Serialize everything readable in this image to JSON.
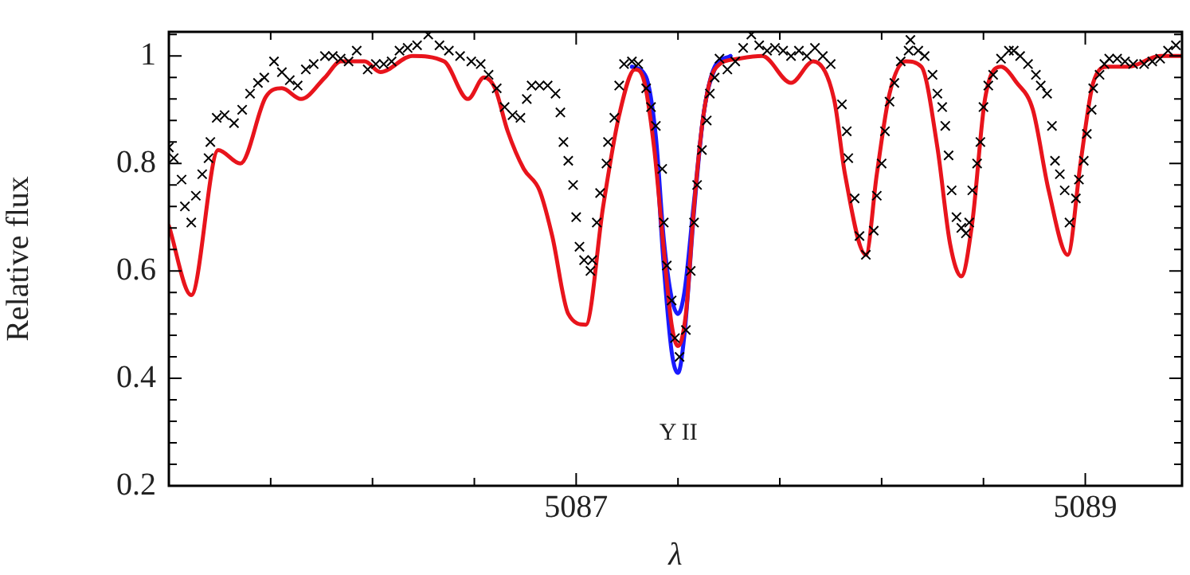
{
  "chart_data": {
    "type": "line",
    "xlabel": "λ",
    "ylabel": "Relative flux",
    "xlim": [
      5085.4,
      5089.38
    ],
    "ylim": [
      0.2,
      1.045
    ],
    "xticks": [
      {
        "value": 5085.8,
        "label": null
      },
      {
        "value": 5086.2,
        "label": null
      },
      {
        "value": 5086.6,
        "label": null
      },
      5087,
      {
        "value": 5087.4,
        "label": null
      },
      {
        "value": 5087.8,
        "label": null
      },
      {
        "value": 5088.2,
        "label": null
      },
      {
        "value": 5088.6,
        "label": null
      },
      5089
    ],
    "yticks": [
      0.2,
      {
        "value": 0.24,
        "label": null
      },
      {
        "value": 0.28,
        "label": null
      },
      {
        "value": 0.32,
        "label": null
      },
      {
        "value": 0.36,
        "label": null
      },
      0.4,
      {
        "value": 0.44,
        "label": null
      },
      {
        "value": 0.48,
        "label": null
      },
      {
        "value": 0.52,
        "label": null
      },
      {
        "value": 0.56,
        "label": null
      },
      0.6,
      {
        "value": 0.64,
        "label": null
      },
      {
        "value": 0.68,
        "label": null
      },
      {
        "value": 0.72,
        "label": null
      },
      {
        "value": 0.76,
        "label": null
      },
      0.8,
      {
        "value": 0.84,
        "label": null
      },
      {
        "value": 0.88,
        "label": null
      },
      {
        "value": 0.92,
        "label": null
      },
      {
        "value": 0.96,
        "label": null
      },
      1,
      {
        "value": 1.04,
        "label": null
      }
    ],
    "grid": false,
    "legend": false,
    "line_style": "solid",
    "annotations": [
      "Y II"
    ],
    "series": [
      {
        "color": "#1a1aff",
        "x": [
          5087.219,
          5087.275,
          5087.313,
          5087.344,
          5087.375,
          5087.4,
          5087.425,
          5087.463,
          5087.5,
          5087.544,
          5087.606
        ],
        "values": [
          0.98,
          0.96,
          0.85,
          0.66,
          0.55,
          0.52,
          0.56,
          0.73,
          0.89,
          0.98,
          1.0
        ]
      },
      {
        "color": "#1a1aff",
        "x": [
          5087.219,
          5087.275,
          5087.313,
          5087.344,
          5087.375,
          5087.4,
          5087.425,
          5087.463,
          5087.5,
          5087.544,
          5087.606
        ],
        "values": [
          0.98,
          0.96,
          0.82,
          0.61,
          0.45,
          0.41,
          0.48,
          0.71,
          0.89,
          0.975,
          1.0
        ]
      },
      {
        "color": "#e8141c",
        "x": [
          5085.4,
          5085.488,
          5085.594,
          5085.681,
          5085.781,
          5085.844,
          5085.919,
          5086.013,
          5086.075,
          5086.169,
          5086.231,
          5086.356,
          5086.481,
          5086.575,
          5086.638,
          5086.681,
          5086.731,
          5086.794,
          5086.856,
          5086.906,
          5086.969,
          5087.038,
          5087.106,
          5087.169,
          5087.231,
          5087.263,
          5087.306,
          5087.344,
          5087.375,
          5087.4,
          5087.431,
          5087.463,
          5087.5,
          5087.544,
          5087.638,
          5087.731,
          5087.844,
          5087.931,
          5088.013,
          5088.056,
          5088.138,
          5088.181,
          5088.231,
          5088.294,
          5088.356,
          5088.419,
          5088.469,
          5088.513,
          5088.556,
          5088.606,
          5088.669,
          5088.731,
          5088.794,
          5088.856,
          5088.931,
          5088.981,
          5089.031,
          5089.088,
          5089.169,
          5089.294,
          5089.38
        ],
        "values": [
          0.684,
          0.555,
          0.825,
          0.8,
          0.924,
          0.94,
          0.92,
          0.96,
          0.99,
          0.99,
          0.97,
          1.0,
          0.99,
          0.92,
          0.96,
          0.94,
          0.86,
          0.79,
          0.75,
          0.665,
          0.52,
          0.5,
          0.72,
          0.89,
          0.975,
          0.96,
          0.83,
          0.64,
          0.5,
          0.46,
          0.52,
          0.72,
          0.89,
          0.975,
          0.995,
          1.0,
          0.95,
          0.99,
          0.92,
          0.78,
          0.63,
          0.78,
          0.93,
          0.99,
          0.98,
          0.83,
          0.65,
          0.59,
          0.69,
          0.92,
          0.98,
          0.95,
          0.9,
          0.75,
          0.63,
          0.8,
          0.95,
          0.98,
          0.98,
          1.0,
          1.0
        ]
      },
      {
        "type": "scatter",
        "color": "#000000",
        "marker": "cross",
        "x": [
          5085.4,
          5085.419,
          5085.45,
          5085.463,
          5085.488,
          5085.506,
          5085.531,
          5085.556,
          5085.563,
          5085.588,
          5085.619,
          5085.656,
          5085.688,
          5085.719,
          5085.75,
          5085.775,
          5085.813,
          5085.844,
          5085.875,
          5085.906,
          5085.938,
          5085.969,
          5086.013,
          5086.044,
          5086.075,
          5086.106,
          5086.138,
          5086.181,
          5086.213,
          5086.244,
          5086.275,
          5086.306,
          5086.338,
          5086.375,
          5086.419,
          5086.463,
          5086.5,
          5086.544,
          5086.588,
          5086.625,
          5086.656,
          5086.688,
          5086.719,
          5086.75,
          5086.781,
          5086.806,
          5086.825,
          5086.856,
          5086.888,
          5086.919,
          5086.938,
          5086.95,
          5086.969,
          5086.988,
          5087.0,
          5087.013,
          5087.031,
          5087.056,
          5087.063,
          5087.081,
          5087.094,
          5087.119,
          5087.125,
          5087.15,
          5087.169,
          5087.188,
          5087.219,
          5087.244,
          5087.275,
          5087.294,
          5087.313,
          5087.338,
          5087.344,
          5087.356,
          5087.375,
          5087.388,
          5087.406,
          5087.431,
          5087.45,
          5087.463,
          5087.475,
          5087.494,
          5087.513,
          5087.525,
          5087.544,
          5087.563,
          5087.594,
          5087.625,
          5087.656,
          5087.688,
          5087.719,
          5087.75,
          5087.781,
          5087.813,
          5087.844,
          5087.875,
          5087.906,
          5087.938,
          5087.969,
          5088.0,
          5088.044,
          5088.063,
          5088.069,
          5088.094,
          5088.113,
          5088.138,
          5088.169,
          5088.181,
          5088.2,
          5088.213,
          5088.231,
          5088.25,
          5088.275,
          5088.306,
          5088.313,
          5088.344,
          5088.369,
          5088.4,
          5088.419,
          5088.438,
          5088.45,
          5088.463,
          5088.475,
          5088.494,
          5088.513,
          5088.531,
          5088.544,
          5088.556,
          5088.575,
          5088.588,
          5088.6,
          5088.619,
          5088.638,
          5088.669,
          5088.7,
          5088.719,
          5088.744,
          5088.775,
          5088.806,
          5088.825,
          5088.85,
          5088.869,
          5088.881,
          5088.9,
          5088.919,
          5088.938,
          5088.963,
          5088.975,
          5088.994,
          5089.006,
          5089.025,
          5089.031,
          5089.056,
          5089.075,
          5089.094,
          5089.125,
          5089.156,
          5089.188,
          5089.231,
          5089.263,
          5089.294,
          5089.325,
          5089.356
        ],
        "values": [
          0.83,
          0.81,
          0.77,
          0.72,
          0.69,
          0.74,
          0.78,
          0.81,
          0.84,
          0.885,
          0.89,
          0.875,
          0.9,
          0.93,
          0.95,
          0.96,
          0.99,
          0.97,
          0.955,
          0.945,
          0.975,
          0.985,
          1.0,
          1.0,
          0.995,
          0.99,
          1.01,
          0.975,
          0.985,
          0.985,
          0.99,
          1.01,
          1.015,
          1.02,
          1.04,
          1.02,
          1.01,
          1.0,
          0.99,
          0.985,
          0.965,
          0.94,
          0.905,
          0.89,
          0.885,
          0.92,
          0.945,
          0.945,
          0.945,
          0.93,
          0.895,
          0.84,
          0.805,
          0.76,
          0.7,
          0.645,
          0.62,
          0.6,
          0.62,
          0.69,
          0.745,
          0.8,
          0.84,
          0.885,
          0.945,
          0.985,
          0.99,
          0.985,
          0.94,
          0.905,
          0.87,
          0.79,
          0.69,
          0.61,
          0.545,
          0.475,
          0.44,
          0.49,
          0.6,
          0.69,
          0.76,
          0.825,
          0.88,
          0.93,
          0.96,
          0.995,
          0.975,
          0.99,
          1.015,
          1.04,
          1.02,
          1.01,
          1.015,
          1.01,
          1.0,
          1.01,
          1.0,
          1.015,
          1.0,
          0.985,
          0.91,
          0.86,
          0.81,
          0.735,
          0.665,
          0.63,
          0.675,
          0.74,
          0.8,
          0.86,
          0.915,
          0.95,
          0.99,
          1.01,
          1.03,
          1.01,
          1.0,
          0.965,
          0.93,
          0.905,
          0.87,
          0.815,
          0.75,
          0.7,
          0.68,
          0.67,
          0.69,
          0.75,
          0.8,
          0.84,
          0.905,
          0.945,
          0.965,
          0.995,
          1.01,
          1.01,
          1.0,
          0.985,
          0.965,
          0.945,
          0.93,
          0.87,
          0.805,
          0.78,
          0.75,
          0.69,
          0.735,
          0.77,
          0.805,
          0.855,
          0.9,
          0.94,
          0.965,
          0.985,
          0.995,
          0.995,
          0.99,
          0.985,
          0.985,
          0.99,
          0.995,
          1.01,
          1.02
        ]
      }
    ]
  }
}
